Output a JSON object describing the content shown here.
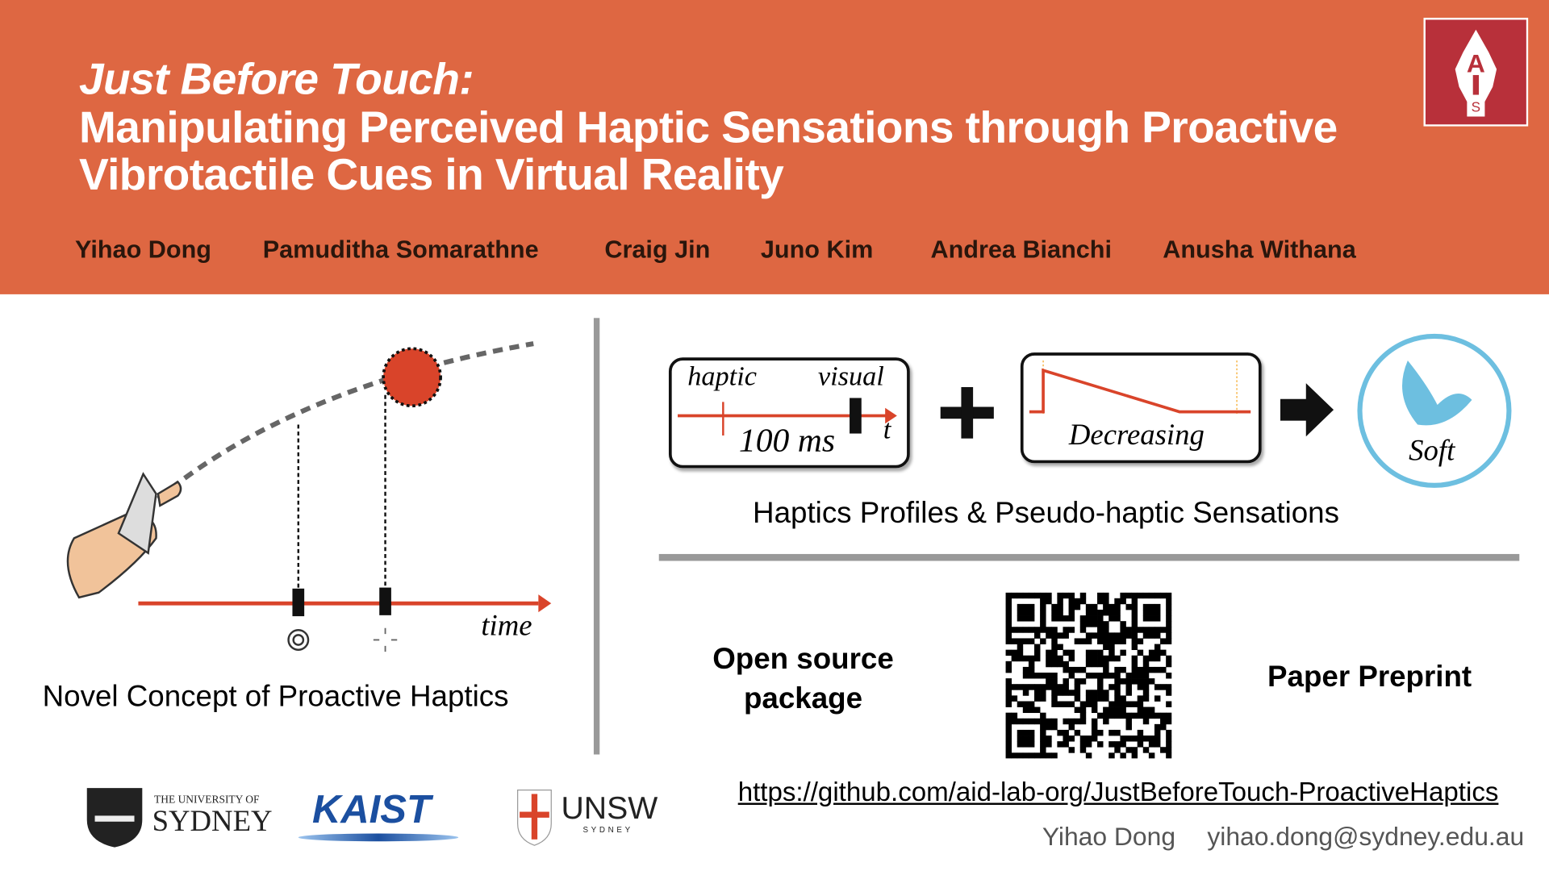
{
  "header": {
    "title_line1": "Just Before Touch:",
    "title_line2": "Manipulating Perceived Haptic Sensations through Proactive",
    "title_line3": "Vibrotactile Cues in Virtual Reality",
    "authors": [
      "Yihao Dong",
      "Pamuditha Somarathne",
      "Craig Jin",
      "Juno Kim",
      "Andrea Bianchi",
      "Anusha Withana"
    ],
    "logo_text": "AIS"
  },
  "concept": {
    "time_label": "time",
    "caption": "Novel Concept of Proactive Haptics"
  },
  "profiles": {
    "haptic_label": "haptic",
    "visual_label": "visual",
    "delay_label": "100 ms",
    "t_label": "t",
    "profile_label": "Decreasing",
    "result_label": "Soft",
    "caption": "Haptics Profiles & Pseudo-haptic Sensations"
  },
  "links": {
    "open_source_line1": "Open source",
    "open_source_line2": "package",
    "paper_preprint": "Paper Preprint",
    "url": "https://github.com/aid-lab-org/JustBeforeTouch-ProactiveHaptics",
    "contact_name": "Yihao Dong",
    "contact_email": "yihao.dong@sydney.edu.au"
  },
  "logos": {
    "sydney_small": "THE UNIVERSITY OF",
    "sydney_big": "SYDNEY",
    "kaist": "KAIST",
    "unsw": "UNSW",
    "unsw_sub": "SYDNEY"
  },
  "colors": {
    "header": "#DE6742",
    "accent_red": "#D9442A",
    "soft_blue": "#6DBFE0",
    "divider": "#999999"
  }
}
